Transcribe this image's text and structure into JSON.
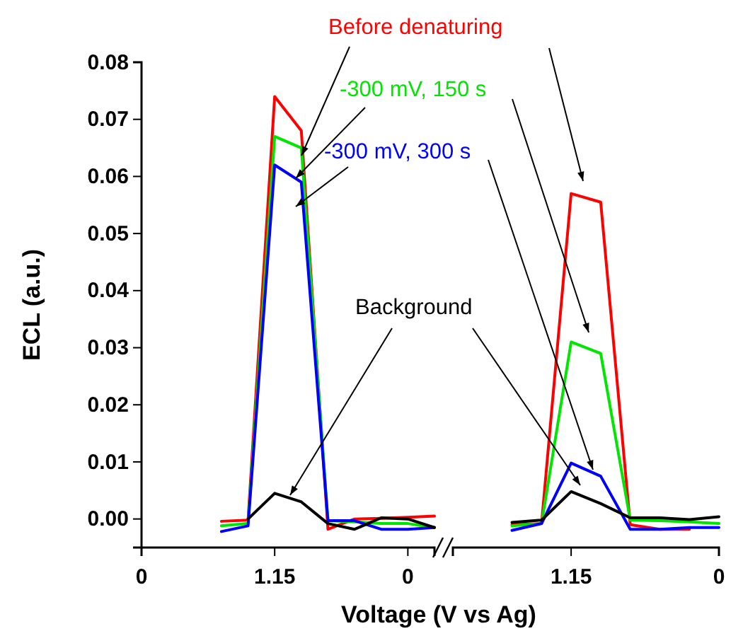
{
  "chart_data": [
    {
      "type": "line",
      "ylabel": "ECL (a.u.)",
      "xlabel": "Voltage (V vs Ag)",
      "categories": [
        "0",
        null,
        null,
        null,
        null,
        "1.15",
        null,
        null,
        null,
        null,
        "0",
        null
      ],
      "ylim": [
        -0.005,
        0.08
      ],
      "yticks": [
        {
          "value": 0,
          "label": "0.00"
        },
        {
          "value": 0.01,
          "label": "0.01"
        },
        {
          "value": 0.02,
          "label": "0.02"
        },
        {
          "value": 0.03,
          "label": "0.03"
        },
        {
          "value": 0.04,
          "label": "0.04"
        },
        {
          "value": 0.05,
          "label": "0.05"
        },
        {
          "value": 0.06,
          "label": "0.06"
        },
        {
          "value": 0.07,
          "label": "0.07"
        },
        {
          "value": 0.08,
          "label": "0.08"
        }
      ],
      "marker": "none",
      "line_style": "solid",
      "series": [
        {
          "name": "Before denaturing",
          "color": "#ff0000",
          "values": [
            null,
            null,
            null,
            -0.0004,
            -0.0002,
            0.074,
            0.068,
            -0.0018,
            0,
            0.0001,
            0.0003,
            0.0005
          ]
        },
        {
          "name": "-300 mV, 150 s",
          "color": "#00e600",
          "values": [
            null,
            null,
            null,
            -0.0012,
            -0.0008,
            0.067,
            0.065,
            -0.0003,
            -0.0005,
            -0.0008,
            -0.0008,
            -0.0015
          ]
        },
        {
          "name": "-300 mV, 300 s",
          "color": "#0000ff",
          "values": [
            null,
            null,
            null,
            -0.0022,
            -0.0012,
            0.062,
            0.059,
            -0.0003,
            -0.0003,
            -0.0018,
            -0.0018,
            -0.0015
          ]
        },
        {
          "name": "Background",
          "color": "#000000",
          "values": [
            null,
            null,
            null,
            null,
            0,
            0.0045,
            0.003,
            -0.0008,
            -0.0018,
            0.0002,
            0,
            -0.0015
          ]
        }
      ]
    },
    {
      "type": "line",
      "categories": [
        null,
        null,
        null,
        null,
        "1.15",
        null,
        null,
        null,
        null,
        "0"
      ],
      "ylim": [
        -0.005,
        0.08
      ],
      "tick_labels": "x",
      "marker": "none",
      "line_style": "solid",
      "series": [
        {
          "color": "#ff0000",
          "values": [
            null,
            null,
            -0.001,
            -0.0008,
            0.057,
            0.0555,
            -0.001,
            -0.0018,
            -0.0018,
            null
          ]
        },
        {
          "color": "#00e600",
          "values": [
            null,
            null,
            -0.0012,
            -0.0008,
            0.031,
            0.029,
            -0.0002,
            -0.0003,
            -0.0005,
            -0.0008
          ]
        },
        {
          "color": "#0000ff",
          "values": [
            null,
            null,
            -0.002,
            -0.0008,
            0.0098,
            0.0075,
            -0.0018,
            -0.0018,
            -0.0015,
            -0.0015
          ]
        },
        {
          "color": "#000000",
          "values": [
            null,
            null,
            -0.0006,
            -0.0002,
            0.0048,
            0.0027,
            0.0002,
            0.0002,
            -0.0001,
            0.0004
          ]
        }
      ]
    }
  ]
}
